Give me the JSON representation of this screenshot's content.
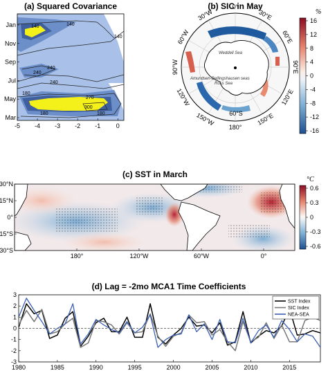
{
  "chart_data": [
    {
      "type": "heatmap",
      "panel": "a",
      "title": "(a) Squared Covariance",
      "x_ticks": [
        -5,
        -4,
        -3,
        -2,
        -1,
        0
      ],
      "y_ticks": [
        "Mar",
        "May",
        "Jul",
        "Sep",
        "Nov",
        "Jan"
      ],
      "xlim": [
        -5,
        0.3
      ],
      "contour_labels": [
        "140",
        "140",
        "240",
        "240",
        "240",
        "270",
        "300",
        "180",
        "180",
        "180",
        "140"
      ],
      "colors": {
        "light": "#a9c1e8",
        "mid": "#6c8fc9",
        "dark": "#3f5f9e",
        "peak": "#f4f01a"
      }
    },
    {
      "type": "heatmap",
      "panel": "b",
      "title": "(b) SIC in May",
      "unit": "%",
      "colorbar_ticks": [
        "16",
        "12",
        "8",
        "4",
        "0",
        "-4",
        "-8",
        "-12",
        "-16"
      ],
      "lon_labels": [
        "0°",
        "30°E",
        "60°E",
        "90°E",
        "120°E",
        "150°E",
        "180°",
        "150°W",
        "120°W",
        "90°W",
        "60°W",
        "30°W"
      ],
      "lat_label": "60°S",
      "annotations": [
        "Weddell Sea",
        "Amundsen-Bellingshausen seas",
        "Ross Sea"
      ]
    },
    {
      "type": "heatmap",
      "panel": "c",
      "title": "(c) SST in March",
      "unit": "°C",
      "lat_ticks": [
        "30°N",
        "15°N",
        "0°",
        "15°S",
        "30°S"
      ],
      "lon_ticks": [
        "180°",
        "120°W",
        "60°W",
        "0°"
      ],
      "colorbar_ticks": [
        "0.6",
        "0.3",
        "0",
        "-0.3",
        "-0.6"
      ]
    },
    {
      "type": "line",
      "panel": "d",
      "title": "(d) Lag = -2mo MCA1 Time Coefficients",
      "xlim": [
        1980,
        2019
      ],
      "ylim": [
        -3,
        3
      ],
      "x_ticks": [
        1980,
        1985,
        1990,
        1995,
        2000,
        2005,
        2010,
        2015
      ],
      "y_ticks": [
        3,
        2,
        1,
        0,
        -1,
        -2,
        -3
      ],
      "x": [
        1980,
        1981,
        1982,
        1983,
        1984,
        1985,
        1986,
        1987,
        1988,
        1989,
        1990,
        1991,
        1992,
        1993,
        1994,
        1995,
        1996,
        1997,
        1998,
        1999,
        2000,
        2001,
        2002,
        2003,
        2004,
        2005,
        2006,
        2007,
        2008,
        2009,
        2010,
        2011,
        2012,
        2013,
        2014,
        2015,
        2016,
        2017,
        2018,
        2019
      ],
      "series": [
        {
          "name": "SST Index",
          "color": "#000000",
          "values": [
            0.1,
            2.2,
            1.3,
            1.6,
            -0.9,
            -0.6,
            0.9,
            1.5,
            -1.6,
            -0.7,
            0.5,
            0.9,
            -0.3,
            -0.3,
            1.0,
            -0.8,
            -0.8,
            2.2,
            -0.8,
            -1.4,
            -0.6,
            0.0,
            1.0,
            0.2,
            0.3,
            -0.4,
            0.5,
            -1.5,
            -1.2,
            1.5,
            -1.3,
            -0.7,
            -0.2,
            -0.4,
            0.2,
            1.8,
            -0.6,
            -0.5,
            -0.2,
            -0.4
          ]
        },
        {
          "name": "SIC Index",
          "color": "#777777",
          "values": [
            0.3,
            1.6,
            0.6,
            1.7,
            -0.5,
            -0.3,
            0.4,
            0.9,
            -1.7,
            -1.3,
            0.7,
            0.6,
            0.3,
            -0.5,
            0.5,
            -0.4,
            -0.3,
            1.3,
            -0.7,
            -1.6,
            -0.7,
            -0.4,
            1.2,
            0.5,
            0.6,
            -0.6,
            -0.1,
            -1.2,
            -2.0,
            0.6,
            -1.2,
            -0.8,
            0.5,
            -0.9,
            0.3,
            -1.2,
            -1.2,
            0.7,
            1.0,
            0.7
          ]
        },
        {
          "name": "NEA-SEA",
          "color": "#3a5fb3",
          "values": [
            1.0,
            2.7,
            1.6,
            0.6,
            -0.5,
            0.0,
            0.4,
            2.2,
            -1.4,
            -0.5,
            0.8,
            0.3,
            -0.1,
            -0.4,
            0.6,
            -0.4,
            0.1,
            1.2,
            -1.7,
            -1.0,
            -0.6,
            -0.5,
            1.2,
            -0.3,
            0.4,
            -1.0,
            0.8,
            -1.2,
            -1.3,
            0.9,
            -1.3,
            -0.2,
            0.3,
            -0.8,
            0.7,
            -0.1,
            -1.2,
            -0.5,
            -0.7,
            -1.7
          ]
        }
      ]
    }
  ]
}
